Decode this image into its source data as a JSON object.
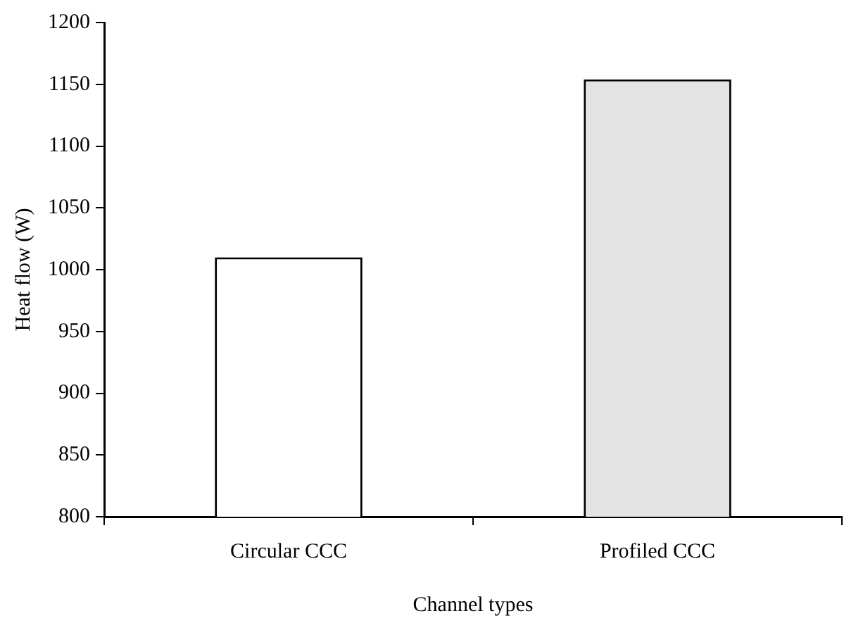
{
  "chart_data": {
    "type": "bar",
    "xlabel": "Channel types",
    "ylabel": "Heat flow (W)",
    "categories": [
      "Circular CCC",
      "Profiled CCC"
    ],
    "values": [
      1010,
      1154
    ],
    "colors": [
      "#ffffff",
      "#e3e3e3"
    ],
    "ylim": [
      800,
      1200
    ],
    "yticks": [
      800,
      850,
      900,
      950,
      1000,
      1050,
      1100,
      1150,
      1200
    ],
    "grid": false,
    "legend": false
  }
}
